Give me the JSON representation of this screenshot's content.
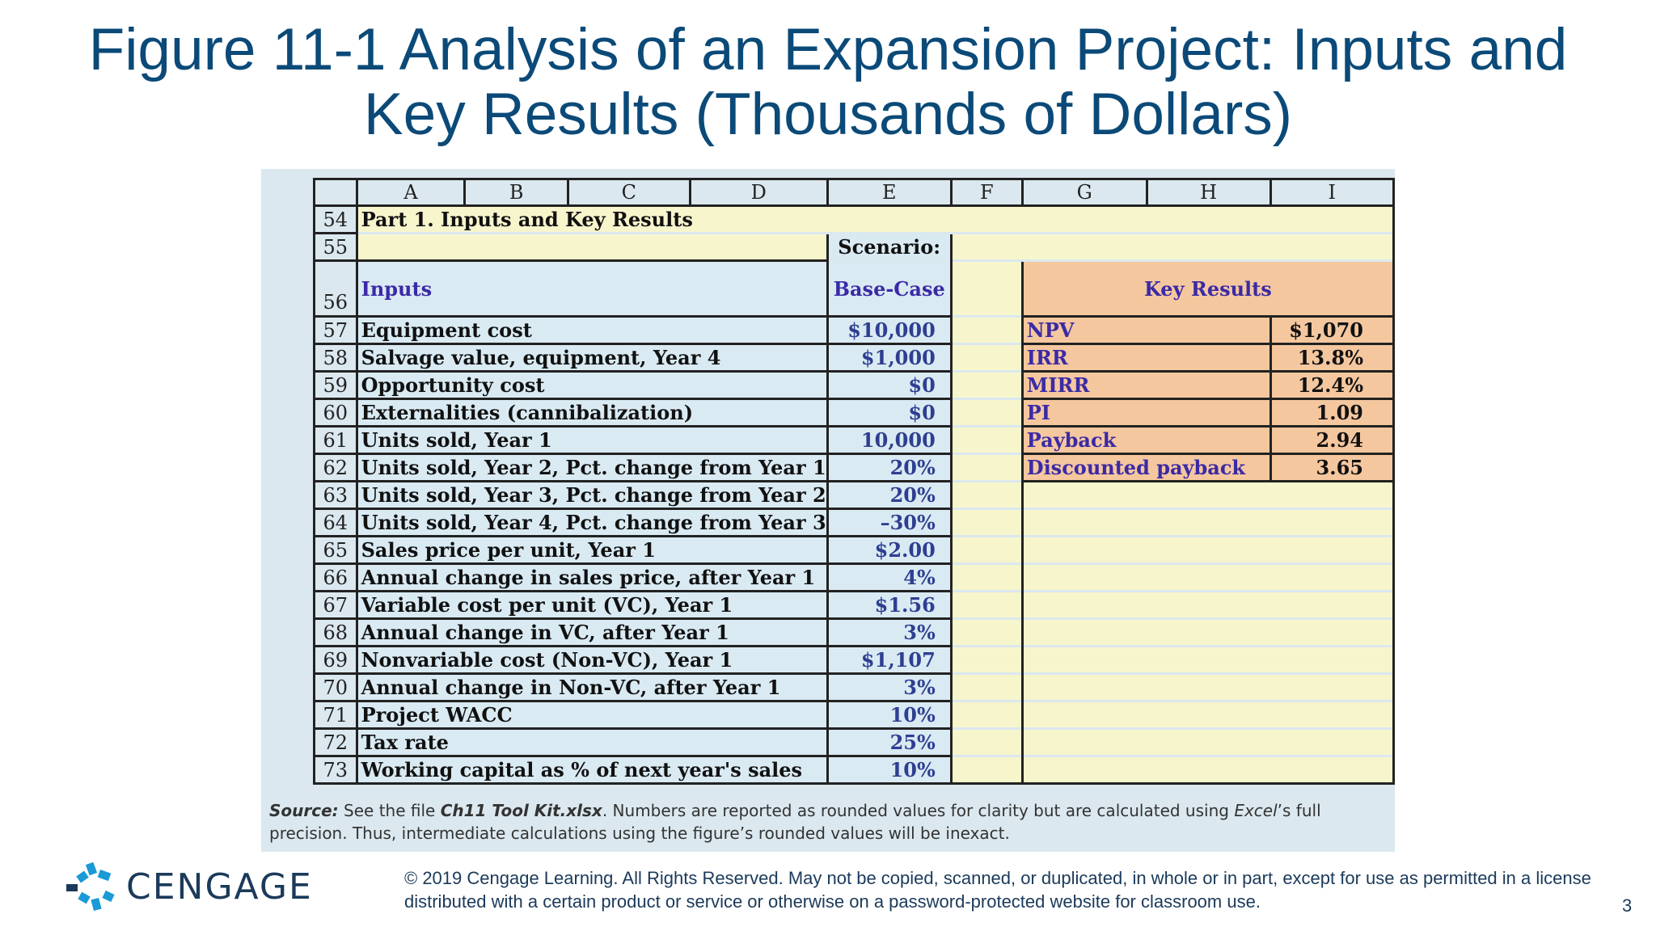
{
  "title": "Figure 11-1 Analysis of an Expansion Project: Inputs and Key Results (Thousands of Dollars)",
  "sheet": {
    "columns": [
      "A",
      "B",
      "C",
      "D",
      "E",
      "F",
      "G",
      "H",
      "I"
    ],
    "row54": {
      "num": "54",
      "label": "Part 1.  Inputs and Key Results"
    },
    "row55": {
      "num": "55",
      "scenario": "Scenario:"
    },
    "row56": {
      "num": "56",
      "inputs": "Inputs",
      "base_case": "Base-Case",
      "key_results": "Key Results"
    },
    "input_rows": [
      {
        "num": "57",
        "label": "Equipment cost",
        "value": "$10,000"
      },
      {
        "num": "58",
        "label": "Salvage value, equipment, Year 4",
        "value": "$1,000"
      },
      {
        "num": "59",
        "label": "Opportunity cost",
        "value": "$0"
      },
      {
        "num": "60",
        "label": "Externalities (cannibalization)",
        "value": "$0"
      },
      {
        "num": "61",
        "label": "Units sold, Year 1",
        "value": "10,000"
      },
      {
        "num": "62",
        "label": "Units sold, Year 2, Pct. change from Year 1",
        "value": "20%"
      },
      {
        "num": "63",
        "label": "Units sold, Year 3, Pct. change from Year 2",
        "value": "20%"
      },
      {
        "num": "64",
        "label": "Units sold, Year 4, Pct. change from Year 3",
        "value": "–30%"
      },
      {
        "num": "65",
        "label": "Sales price per unit, Year 1",
        "value": "$2.00"
      },
      {
        "num": "66",
        "label": "Annual change in sales price, after Year 1",
        "value": "4%"
      },
      {
        "num": "67",
        "label": "Variable cost per unit (VC), Year 1",
        "value": "$1.56"
      },
      {
        "num": "68",
        "label": "Annual change in VC, after Year 1",
        "value": "3%"
      },
      {
        "num": "69",
        "label": "Nonvariable cost (Non-VC), Year 1",
        "value": "$1,107"
      },
      {
        "num": "70",
        "label": "Annual change in Non-VC, after Year 1",
        "value": "3%"
      },
      {
        "num": "71",
        "label": "Project WACC",
        "value": "10%"
      },
      {
        "num": "72",
        "label": "Tax rate",
        "value": "25%"
      },
      {
        "num": "73",
        "label": "Working capital as % of next year's sales",
        "value": "10%"
      }
    ],
    "key_results": [
      {
        "label": "NPV",
        "value": "$1,070"
      },
      {
        "label": "IRR",
        "value": "13.8%"
      },
      {
        "label": "MIRR",
        "value": "12.4%"
      },
      {
        "label": "PI",
        "value": "1.09"
      },
      {
        "label": "Payback",
        "value": "2.94"
      },
      {
        "label": "Discounted payback",
        "value": "3.65"
      }
    ]
  },
  "source": {
    "lead": "Source:",
    "text1": " See the file ",
    "file": "Ch11 Tool Kit.xlsx",
    "text2": ". Numbers are reported as rounded values for clarity but are calculated using ",
    "excel": "Excel",
    "text3": "’s full precision. Thus, intermediate calculations using the figure’s rounded values will be inexact."
  },
  "footer": {
    "brand": "CENGAGE",
    "copyright": "© 2019 Cengage Learning. All Rights Reserved. May not be copied, scanned, or duplicated, in whole or in part, except for use as permitted in a license distributed with a certain product or service or otherwise on a password-protected website for classroom use.",
    "page_number": "3",
    "logo_color": "#1a9ad6"
  }
}
